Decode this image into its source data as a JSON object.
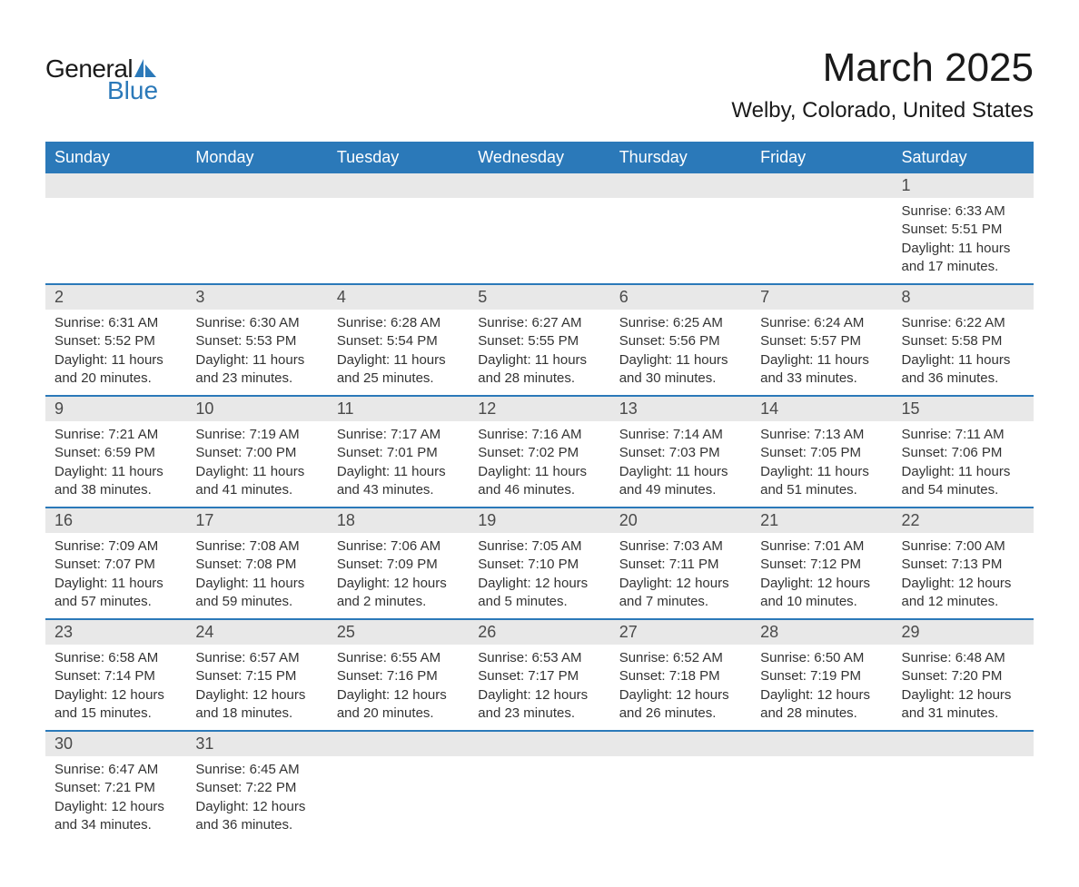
{
  "logo": {
    "text_general": "General",
    "text_blue": "Blue",
    "accent_color": "#2b79b9"
  },
  "title": "March 2025",
  "location": "Welby, Colorado, United States",
  "colors": {
    "header_bg": "#2b79b9",
    "header_text": "#ffffff",
    "daynum_bg": "#e8e8e8",
    "text": "#333333",
    "border": "#2b79b9"
  },
  "day_headers": [
    "Sunday",
    "Monday",
    "Tuesday",
    "Wednesday",
    "Thursday",
    "Friday",
    "Saturday"
  ],
  "weeks": [
    [
      {
        "num": "",
        "sunrise": "",
        "sunset": "",
        "daylight": ""
      },
      {
        "num": "",
        "sunrise": "",
        "sunset": "",
        "daylight": ""
      },
      {
        "num": "",
        "sunrise": "",
        "sunset": "",
        "daylight": ""
      },
      {
        "num": "",
        "sunrise": "",
        "sunset": "",
        "daylight": ""
      },
      {
        "num": "",
        "sunrise": "",
        "sunset": "",
        "daylight": ""
      },
      {
        "num": "",
        "sunrise": "",
        "sunset": "",
        "daylight": ""
      },
      {
        "num": "1",
        "sunrise": "Sunrise: 6:33 AM",
        "sunset": "Sunset: 5:51 PM",
        "daylight": "Daylight: 11 hours and 17 minutes."
      }
    ],
    [
      {
        "num": "2",
        "sunrise": "Sunrise: 6:31 AM",
        "sunset": "Sunset: 5:52 PM",
        "daylight": "Daylight: 11 hours and 20 minutes."
      },
      {
        "num": "3",
        "sunrise": "Sunrise: 6:30 AM",
        "sunset": "Sunset: 5:53 PM",
        "daylight": "Daylight: 11 hours and 23 minutes."
      },
      {
        "num": "4",
        "sunrise": "Sunrise: 6:28 AM",
        "sunset": "Sunset: 5:54 PM",
        "daylight": "Daylight: 11 hours and 25 minutes."
      },
      {
        "num": "5",
        "sunrise": "Sunrise: 6:27 AM",
        "sunset": "Sunset: 5:55 PM",
        "daylight": "Daylight: 11 hours and 28 minutes."
      },
      {
        "num": "6",
        "sunrise": "Sunrise: 6:25 AM",
        "sunset": "Sunset: 5:56 PM",
        "daylight": "Daylight: 11 hours and 30 minutes."
      },
      {
        "num": "7",
        "sunrise": "Sunrise: 6:24 AM",
        "sunset": "Sunset: 5:57 PM",
        "daylight": "Daylight: 11 hours and 33 minutes."
      },
      {
        "num": "8",
        "sunrise": "Sunrise: 6:22 AM",
        "sunset": "Sunset: 5:58 PM",
        "daylight": "Daylight: 11 hours and 36 minutes."
      }
    ],
    [
      {
        "num": "9",
        "sunrise": "Sunrise: 7:21 AM",
        "sunset": "Sunset: 6:59 PM",
        "daylight": "Daylight: 11 hours and 38 minutes."
      },
      {
        "num": "10",
        "sunrise": "Sunrise: 7:19 AM",
        "sunset": "Sunset: 7:00 PM",
        "daylight": "Daylight: 11 hours and 41 minutes."
      },
      {
        "num": "11",
        "sunrise": "Sunrise: 7:17 AM",
        "sunset": "Sunset: 7:01 PM",
        "daylight": "Daylight: 11 hours and 43 minutes."
      },
      {
        "num": "12",
        "sunrise": "Sunrise: 7:16 AM",
        "sunset": "Sunset: 7:02 PM",
        "daylight": "Daylight: 11 hours and 46 minutes."
      },
      {
        "num": "13",
        "sunrise": "Sunrise: 7:14 AM",
        "sunset": "Sunset: 7:03 PM",
        "daylight": "Daylight: 11 hours and 49 minutes."
      },
      {
        "num": "14",
        "sunrise": "Sunrise: 7:13 AM",
        "sunset": "Sunset: 7:05 PM",
        "daylight": "Daylight: 11 hours and 51 minutes."
      },
      {
        "num": "15",
        "sunrise": "Sunrise: 7:11 AM",
        "sunset": "Sunset: 7:06 PM",
        "daylight": "Daylight: 11 hours and 54 minutes."
      }
    ],
    [
      {
        "num": "16",
        "sunrise": "Sunrise: 7:09 AM",
        "sunset": "Sunset: 7:07 PM",
        "daylight": "Daylight: 11 hours and 57 minutes."
      },
      {
        "num": "17",
        "sunrise": "Sunrise: 7:08 AM",
        "sunset": "Sunset: 7:08 PM",
        "daylight": "Daylight: 11 hours and 59 minutes."
      },
      {
        "num": "18",
        "sunrise": "Sunrise: 7:06 AM",
        "sunset": "Sunset: 7:09 PM",
        "daylight": "Daylight: 12 hours and 2 minutes."
      },
      {
        "num": "19",
        "sunrise": "Sunrise: 7:05 AM",
        "sunset": "Sunset: 7:10 PM",
        "daylight": "Daylight: 12 hours and 5 minutes."
      },
      {
        "num": "20",
        "sunrise": "Sunrise: 7:03 AM",
        "sunset": "Sunset: 7:11 PM",
        "daylight": "Daylight: 12 hours and 7 minutes."
      },
      {
        "num": "21",
        "sunrise": "Sunrise: 7:01 AM",
        "sunset": "Sunset: 7:12 PM",
        "daylight": "Daylight: 12 hours and 10 minutes."
      },
      {
        "num": "22",
        "sunrise": "Sunrise: 7:00 AM",
        "sunset": "Sunset: 7:13 PM",
        "daylight": "Daylight: 12 hours and 12 minutes."
      }
    ],
    [
      {
        "num": "23",
        "sunrise": "Sunrise: 6:58 AM",
        "sunset": "Sunset: 7:14 PM",
        "daylight": "Daylight: 12 hours and 15 minutes."
      },
      {
        "num": "24",
        "sunrise": "Sunrise: 6:57 AM",
        "sunset": "Sunset: 7:15 PM",
        "daylight": "Daylight: 12 hours and 18 minutes."
      },
      {
        "num": "25",
        "sunrise": "Sunrise: 6:55 AM",
        "sunset": "Sunset: 7:16 PM",
        "daylight": "Daylight: 12 hours and 20 minutes."
      },
      {
        "num": "26",
        "sunrise": "Sunrise: 6:53 AM",
        "sunset": "Sunset: 7:17 PM",
        "daylight": "Daylight: 12 hours and 23 minutes."
      },
      {
        "num": "27",
        "sunrise": "Sunrise: 6:52 AM",
        "sunset": "Sunset: 7:18 PM",
        "daylight": "Daylight: 12 hours and 26 minutes."
      },
      {
        "num": "28",
        "sunrise": "Sunrise: 6:50 AM",
        "sunset": "Sunset: 7:19 PM",
        "daylight": "Daylight: 12 hours and 28 minutes."
      },
      {
        "num": "29",
        "sunrise": "Sunrise: 6:48 AM",
        "sunset": "Sunset: 7:20 PM",
        "daylight": "Daylight: 12 hours and 31 minutes."
      }
    ],
    [
      {
        "num": "30",
        "sunrise": "Sunrise: 6:47 AM",
        "sunset": "Sunset: 7:21 PM",
        "daylight": "Daylight: 12 hours and 34 minutes."
      },
      {
        "num": "31",
        "sunrise": "Sunrise: 6:45 AM",
        "sunset": "Sunset: 7:22 PM",
        "daylight": "Daylight: 12 hours and 36 minutes."
      },
      {
        "num": "",
        "sunrise": "",
        "sunset": "",
        "daylight": ""
      },
      {
        "num": "",
        "sunrise": "",
        "sunset": "",
        "daylight": ""
      },
      {
        "num": "",
        "sunrise": "",
        "sunset": "",
        "daylight": ""
      },
      {
        "num": "",
        "sunrise": "",
        "sunset": "",
        "daylight": ""
      },
      {
        "num": "",
        "sunrise": "",
        "sunset": "",
        "daylight": ""
      }
    ]
  ]
}
